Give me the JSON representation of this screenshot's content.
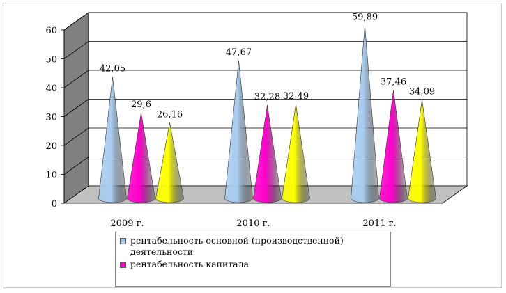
{
  "chart_data": {
    "type": "bar",
    "style": "3d-cone",
    "categories": [
      "2009 г.",
      "2010 г.",
      "2011 г."
    ],
    "ylim": [
      0,
      60
    ],
    "yticks": [
      "0",
      "10",
      "20",
      "30",
      "40",
      "50",
      "60"
    ],
    "grid": true,
    "legend_position": "bottom",
    "series": [
      {
        "name": "рентабельность основной (производственной) деятельности",
        "values": [
          42.05,
          47.67,
          59.89
        ],
        "labels": [
          "42,05",
          "47,67",
          "59,89"
        ],
        "color": "#a8ccf0"
      },
      {
        "name": "рентабельность капитала",
        "values": [
          29.6,
          32.28,
          37.46
        ],
        "labels": [
          "29,6",
          "32,28",
          "37,46"
        ],
        "color": "#ff00cc"
      },
      {
        "name": "",
        "values": [
          26.16,
          32.49,
          34.09
        ],
        "labels": [
          "26,16",
          "32,49",
          "34,09"
        ],
        "color": "#ffff00"
      }
    ]
  },
  "legend": {
    "items": [
      {
        "label": "рентабельность основной (производственной) деятельности",
        "color": "#a8ccf0"
      },
      {
        "label": "рентабельность капитала",
        "color": "#ff00cc"
      }
    ]
  }
}
